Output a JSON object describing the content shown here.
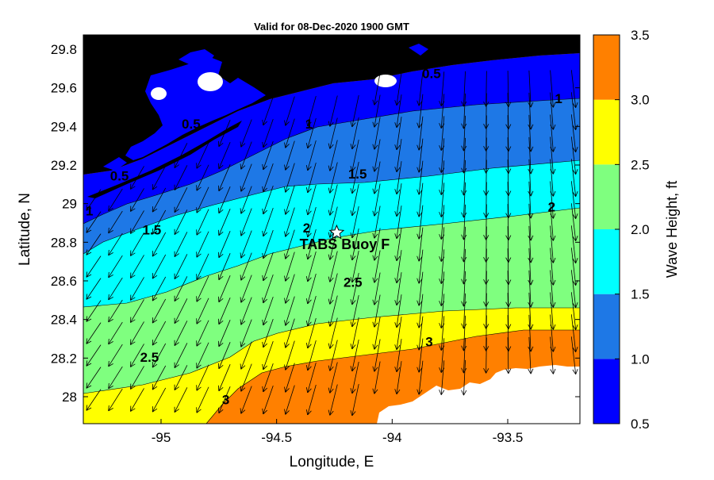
{
  "title": "Valid for 08-Dec-2020 1900 GMT",
  "xlabel": "Longitude, E",
  "ylabel": "Latitude, N",
  "colorbar_label": "Wave Height, ft",
  "buoy_label": "TABS Buoy F",
  "x_ticks": [
    {
      "value": -95,
      "label": "-95"
    },
    {
      "value": -94.5,
      "label": "-94.5"
    },
    {
      "value": -94,
      "label": "-94"
    },
    {
      "value": -93.5,
      "label": "-93.5"
    }
  ],
  "y_ticks": [
    {
      "value": 29.8,
      "label": "29.8"
    },
    {
      "value": 29.6,
      "label": "29.6"
    },
    {
      "value": 29.4,
      "label": "29.4"
    },
    {
      "value": 29.2,
      "label": "29.2"
    },
    {
      "value": 29.0,
      "label": "29"
    },
    {
      "value": 28.8,
      "label": "28.8"
    },
    {
      "value": 28.6,
      "label": "28.6"
    },
    {
      "value": 28.4,
      "label": "28.4"
    },
    {
      "value": 28.2,
      "label": "28.2"
    },
    {
      "value": 28.0,
      "label": "28"
    }
  ],
  "colorbar_ticks": [
    "0.5",
    "1.0",
    "1.5",
    "2.0",
    "2.5",
    "3.0",
    "3.5"
  ],
  "band_colors": [
    "#0000ff",
    "#1e78e6",
    "#00ffff",
    "#7fff7f",
    "#ffff00",
    "#ff8000"
  ],
  "land_color": "#000000",
  "contour_labels": [
    {
      "text": "0.5",
      "lon": -93.83,
      "lat": 29.65
    },
    {
      "text": "0.5",
      "lon": -94.87,
      "lat": 29.39
    },
    {
      "text": "0.5",
      "lon": -95.18,
      "lat": 29.12
    },
    {
      "text": "1",
      "lon": -93.28,
      "lat": 29.52
    },
    {
      "text": "1",
      "lon": -94.36,
      "lat": 29.39
    },
    {
      "text": "1",
      "lon": -95.31,
      "lat": 28.94
    },
    {
      "text": "1.5",
      "lon": -94.15,
      "lat": 29.13
    },
    {
      "text": "1.5",
      "lon": -95.04,
      "lat": 28.84
    },
    {
      "text": "2",
      "lon": -93.31,
      "lat": 28.96
    },
    {
      "text": "2",
      "lon": -94.37,
      "lat": 28.85
    },
    {
      "text": "2.5",
      "lon": -94.17,
      "lat": 28.57
    },
    {
      "text": "2.5",
      "lon": -95.05,
      "lat": 28.18
    },
    {
      "text": "3",
      "lon": -93.84,
      "lat": 28.26
    },
    {
      "text": "3",
      "lon": -94.72,
      "lat": 27.96
    }
  ],
  "buoy": {
    "lon": -94.24,
    "lat": 28.85
  }
}
